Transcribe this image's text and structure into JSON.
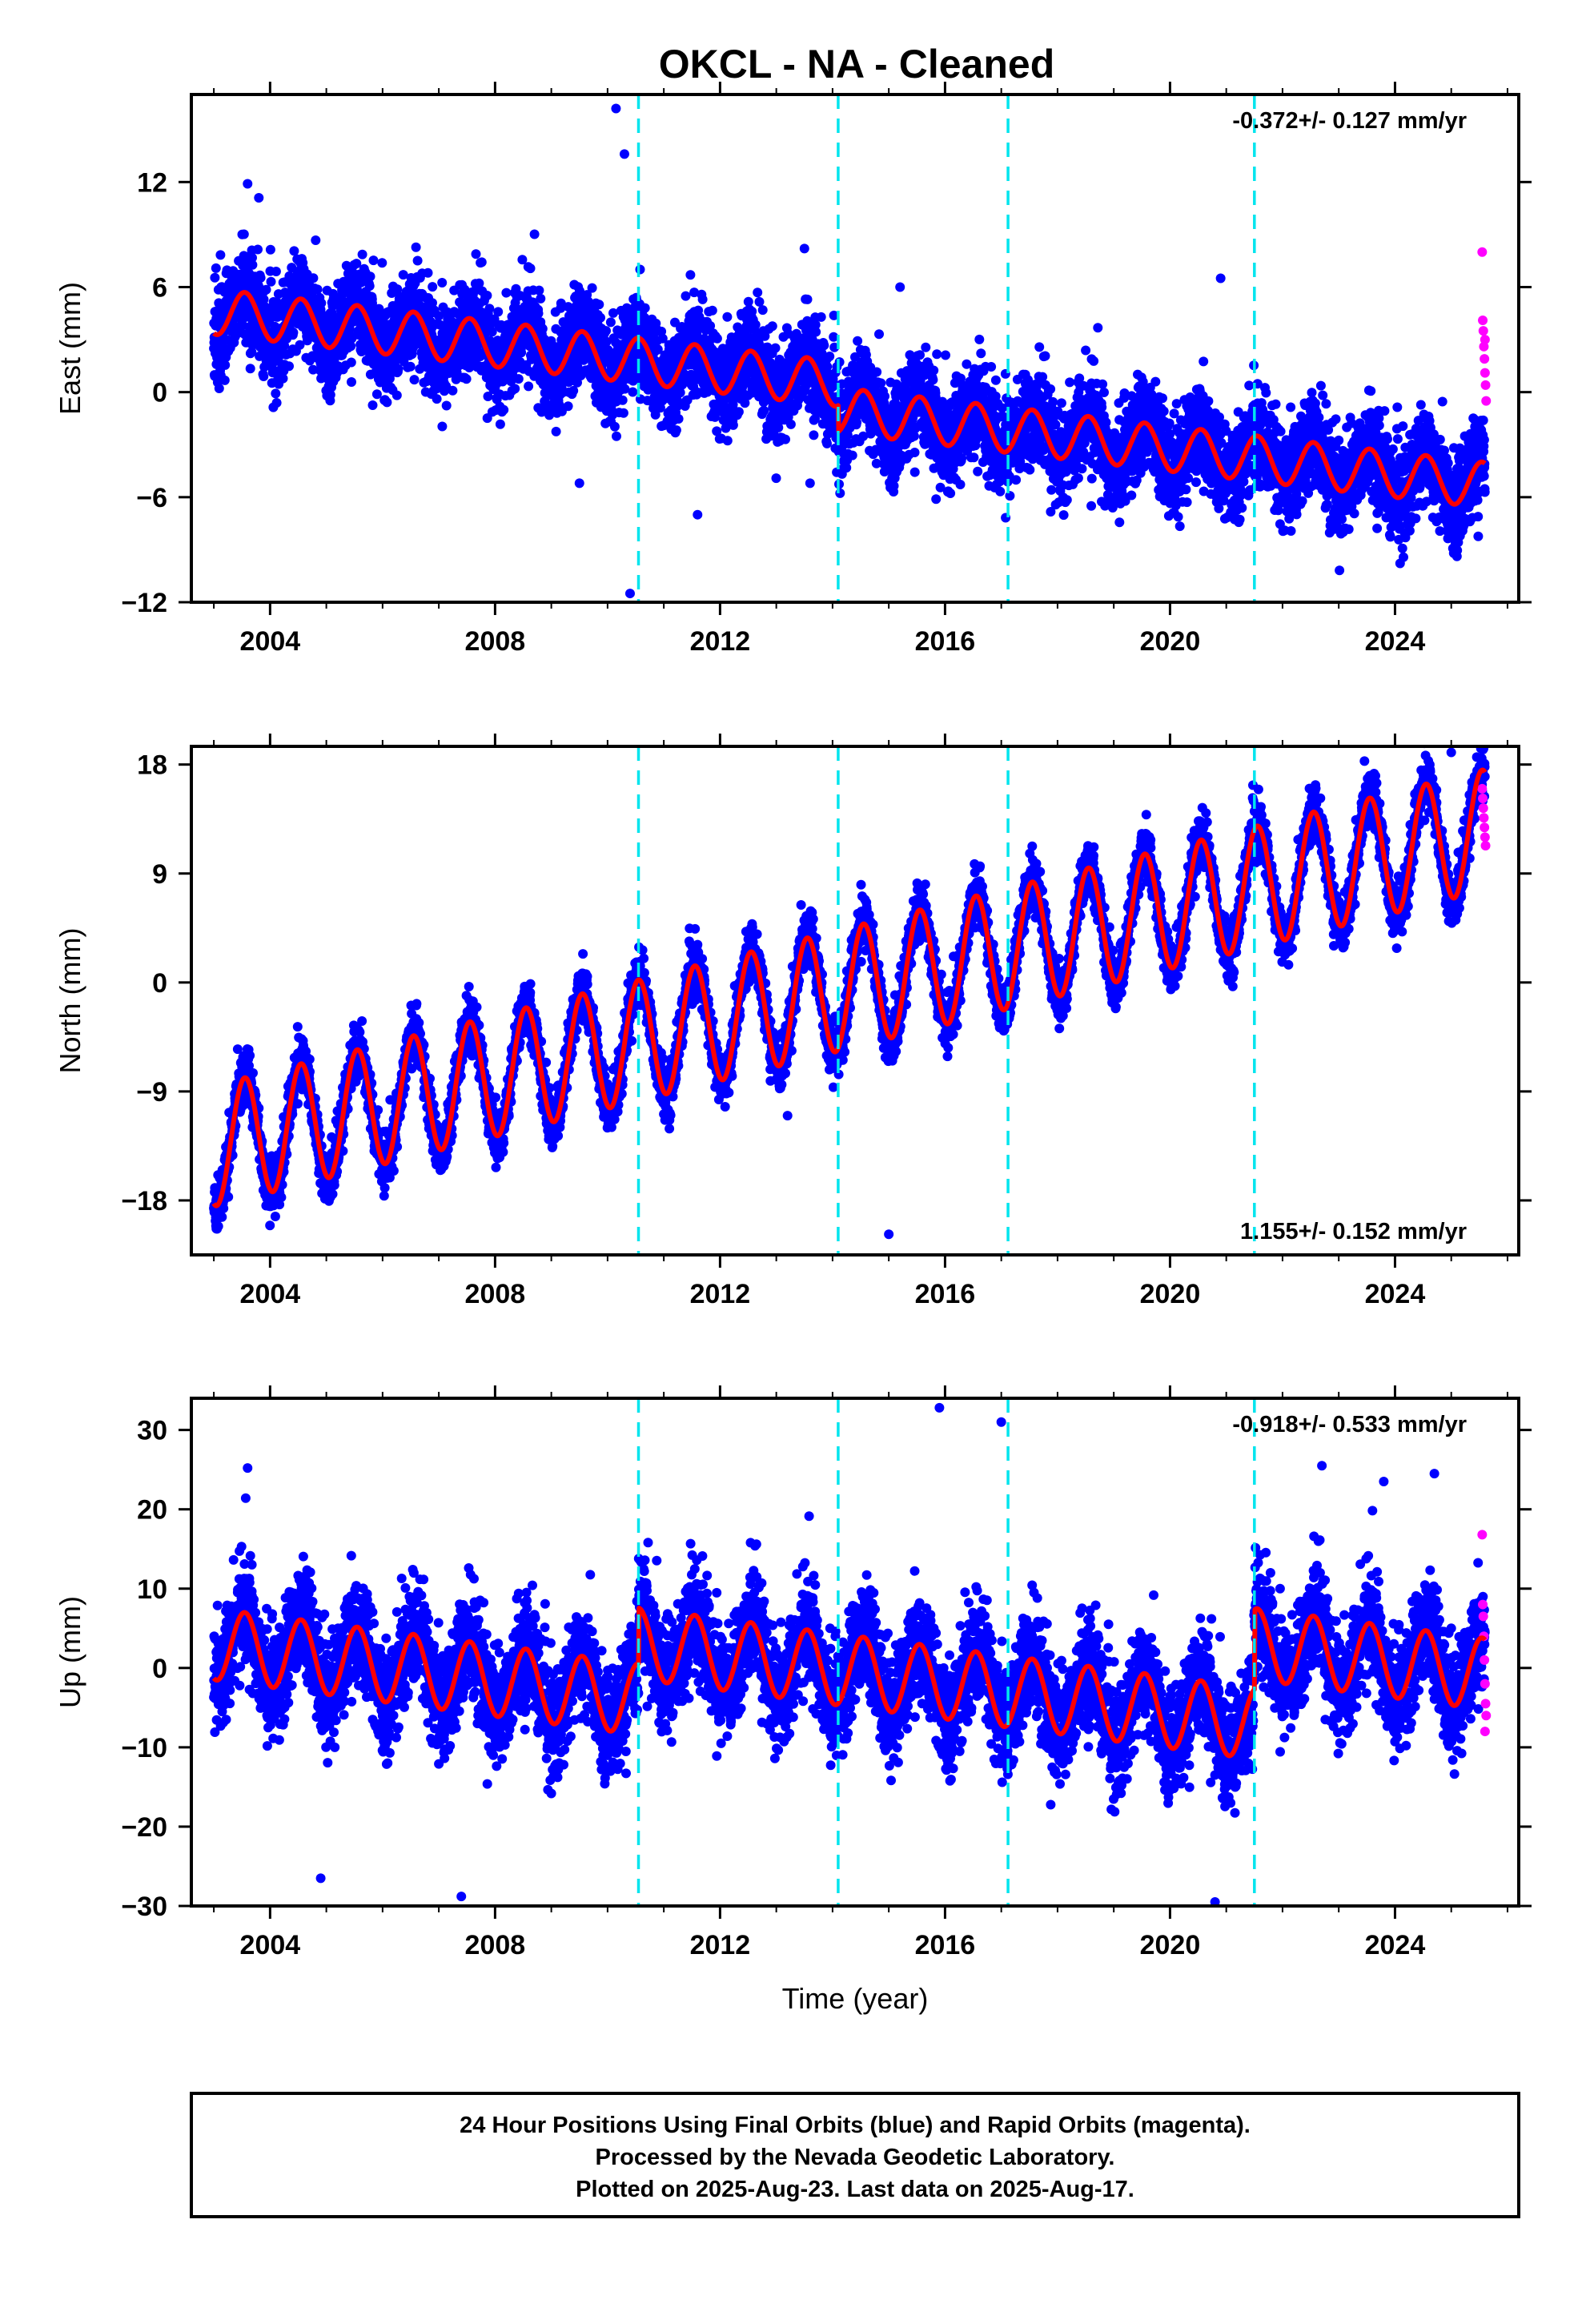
{
  "title": "OKCL  - NA - Cleaned",
  "footer": {
    "line1": "24 Hour Positions Using Final Orbits (blue) and Rapid Orbits (magenta).",
    "line2": "Processed by the Nevada Geodetic Laboratory.",
    "line3": "Plotted on 2025-Aug-23. Last data on 2025-Aug-17."
  },
  "colors": {
    "final_orbits": "#0000ff",
    "rapid_orbits": "#ff00ff",
    "model": "#ff0000",
    "equipment_change": "#00e5ee"
  },
  "chart_data": [
    {
      "type": "scatter",
      "panel": "east",
      "ylabel": "East (mm)",
      "xlabel": "",
      "rate_label": "-0.372+/- 0.127 mm/yr",
      "rate_position": "top-right",
      "xlim": [
        2002.6,
        2026.2
      ],
      "ylim": [
        -12,
        17
      ],
      "xticks": [
        2004,
        2008,
        2012,
        2016,
        2020,
        2024
      ],
      "xtick_labels": [
        "2004",
        "2008",
        "2012",
        "2016",
        "2020",
        "2024"
      ],
      "yticks": [
        -12,
        -6,
        0,
        6,
        12
      ],
      "ytick_labels": [
        "−12",
        "−6",
        "0",
        "6",
        "12"
      ],
      "discontinuities": [
        2010.55,
        2014.1,
        2017.12,
        2021.5
      ],
      "model": {
        "start_year": 2003.0,
        "end_year": 2025.6,
        "trend_mm_per_yr": -0.372,
        "value_at_start": 4.6,
        "annual_amplitude": 1.3,
        "offsets": [
          {
            "year": 2014.1,
            "value": -1.5
          }
        ],
        "scatter_sigma": 1.8
      },
      "outliers": [
        {
          "x": 2010.15,
          "y": 16.2
        },
        {
          "x": 2010.3,
          "y": 13.6
        },
        {
          "x": 2010.4,
          "y": -11.5
        },
        {
          "x": 2003.6,
          "y": 11.9
        },
        {
          "x": 2003.8,
          "y": 11.1
        },
        {
          "x": 2011.6,
          "y": -7.0
        },
        {
          "x": 2015.2,
          "y": 6.0
        },
        {
          "x": 2020.9,
          "y": 6.5
        },
        {
          "x": 2013.5,
          "y": 8.2
        },
        {
          "x": 2009.5,
          "y": -5.2
        },
        {
          "x": 2013.6,
          "y": -5.2
        },
        {
          "x": 2018.6,
          "y": -6.5
        }
      ],
      "rapid_points": [
        {
          "x": 2025.55,
          "y": 8.0
        },
        {
          "x": 2025.56,
          "y": 4.1
        },
        {
          "x": 2025.57,
          "y": 3.5
        },
        {
          "x": 2025.58,
          "y": 2.6
        },
        {
          "x": 2025.59,
          "y": 1.9
        },
        {
          "x": 2025.6,
          "y": 1.1
        },
        {
          "x": 2025.61,
          "y": 0.4
        },
        {
          "x": 2025.62,
          "y": -0.5
        },
        {
          "x": 2025.6,
          "y": 3.0
        }
      ]
    },
    {
      "type": "scatter",
      "panel": "north",
      "ylabel": "North (mm)",
      "xlabel": "",
      "rate_label": "1.155+/- 0.152 mm/yr",
      "rate_position": "bottom-right",
      "xlim": [
        2002.6,
        2026.2
      ],
      "ylim": [
        -22.5,
        19.5
      ],
      "xticks": [
        2004,
        2008,
        2012,
        2016,
        2020,
        2024
      ],
      "xtick_labels": [
        "2004",
        "2008",
        "2012",
        "2016",
        "2020",
        "2024"
      ],
      "yticks": [
        -18,
        -9,
        0,
        9,
        18
      ],
      "ytick_labels": [
        "−18",
        "−9",
        "0",
        "9",
        "18"
      ],
      "discontinuities": [
        2010.55,
        2014.1,
        2017.12,
        2021.5
      ],
      "model": {
        "start_year": 2003.0,
        "end_year": 2025.6,
        "trend_mm_per_yr": 1.155,
        "value_at_start": -13.5,
        "annual_amplitude": 5.0,
        "offsets": [],
        "scatter_sigma": 1.4
      },
      "outliers": [
        {
          "x": 2015.0,
          "y": -20.8
        },
        {
          "x": 2013.2,
          "y": -11.0
        },
        {
          "x": 2025.0,
          "y": 19.0
        }
      ],
      "rapid_points": [
        {
          "x": 2025.55,
          "y": 16.0
        },
        {
          "x": 2025.56,
          "y": 15.2
        },
        {
          "x": 2025.57,
          "y": 14.4
        },
        {
          "x": 2025.58,
          "y": 13.6
        },
        {
          "x": 2025.59,
          "y": 12.8
        },
        {
          "x": 2025.6,
          "y": 12.0
        },
        {
          "x": 2025.61,
          "y": 11.3
        }
      ]
    },
    {
      "type": "scatter",
      "panel": "up",
      "ylabel": "Up (mm)",
      "xlabel": "Time (year)",
      "rate_label": "-0.918+/- 0.533 mm/yr",
      "rate_position": "top-right",
      "xlim": [
        2002.6,
        2026.2
      ],
      "ylim": [
        -30,
        34
      ],
      "xticks": [
        2004,
        2008,
        2012,
        2016,
        2020,
        2024
      ],
      "xtick_labels": [
        "2004",
        "2008",
        "2012",
        "2016",
        "2020",
        "2024"
      ],
      "yticks": [
        -30,
        -20,
        -10,
        0,
        10,
        20,
        30
      ],
      "ytick_labels": [
        "−30",
        "−20",
        "−10",
        "0",
        "10",
        "20",
        "30"
      ],
      "discontinuities": [
        2010.55,
        2014.1,
        2017.12,
        2021.5
      ],
      "model": {
        "start_year": 2003.0,
        "end_year": 2025.6,
        "trend_mm_per_yr": -0.918,
        "value_at_start": 3.0,
        "annual_amplitude": 4.5,
        "offsets": [
          {
            "year": 2010.55,
            "value": 7.0
          },
          {
            "year": 2021.5,
            "value": 10.0
          }
        ],
        "scatter_sigma": 4.5
      },
      "outliers": [
        {
          "x": 2015.9,
          "y": 32.8
        },
        {
          "x": 2017.0,
          "y": 31.0
        },
        {
          "x": 2007.4,
          "y": -28.8
        },
        {
          "x": 2020.8,
          "y": -29.5
        },
        {
          "x": 2004.9,
          "y": -26.5
        },
        {
          "x": 2003.6,
          "y": 25.2
        },
        {
          "x": 2022.7,
          "y": 25.5
        },
        {
          "x": 2024.7,
          "y": 24.5
        },
        {
          "x": 2023.8,
          "y": 23.5
        }
      ],
      "rapid_points": [
        {
          "x": 2025.55,
          "y": 16.8
        },
        {
          "x": 2025.56,
          "y": 8.0
        },
        {
          "x": 2025.57,
          "y": 6.5
        },
        {
          "x": 2025.58,
          "y": 4.0
        },
        {
          "x": 2025.59,
          "y": 1.0
        },
        {
          "x": 2025.6,
          "y": -2.0
        },
        {
          "x": 2025.61,
          "y": -4.5
        },
        {
          "x": 2025.62,
          "y": -6.0
        },
        {
          "x": 2025.6,
          "y": -8.0
        }
      ]
    }
  ]
}
